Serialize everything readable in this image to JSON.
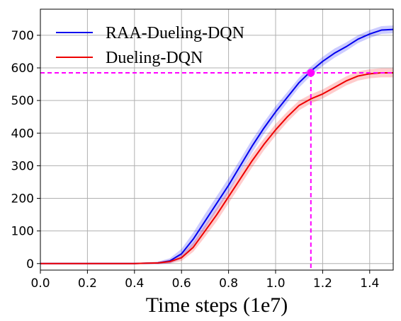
{
  "chart_data": {
    "type": "line",
    "title": "",
    "xlabel": "Time steps (1e7)",
    "ylabel": "",
    "xlim": [
      0.0,
      1.5
    ],
    "ylim": [
      -20,
      780
    ],
    "grid": true,
    "legend_position": "top-left",
    "xticks": [
      0.0,
      0.2,
      0.4,
      0.6,
      0.8,
      1.0,
      1.2,
      1.4
    ],
    "xtick_labels": [
      "0.0",
      "0.2",
      "0.4",
      "0.6",
      "0.8",
      "1.0",
      "1.2",
      "1.4"
    ],
    "yticks": [
      0,
      100,
      200,
      300,
      400,
      500,
      600,
      700
    ],
    "ytick_labels": [
      "0",
      "100",
      "200",
      "300",
      "400",
      "500",
      "600",
      "700"
    ],
    "x": [
      0.0,
      0.1,
      0.2,
      0.3,
      0.4,
      0.45,
      0.5,
      0.55,
      0.6,
      0.65,
      0.7,
      0.75,
      0.8,
      0.85,
      0.9,
      0.95,
      1.0,
      1.05,
      1.1,
      1.15,
      1.2,
      1.25,
      1.3,
      1.35,
      1.4,
      1.45,
      1.5
    ],
    "series": [
      {
        "name": "RAA-Dueling-DQN",
        "color": "#0000ee",
        "band_color": "#0000ff",
        "values": [
          0,
          0,
          0,
          0,
          0,
          1,
          2,
          8,
          30,
          75,
          130,
          185,
          240,
          300,
          360,
          415,
          465,
          510,
          555,
          590,
          620,
          645,
          665,
          688,
          704,
          716,
          718
        ],
        "band": [
          0,
          0,
          0,
          0,
          0,
          2,
          4,
          8,
          15,
          20,
          22,
          22,
          22,
          20,
          20,
          18,
          18,
          16,
          15,
          14,
          14,
          14,
          13,
          12,
          12,
          12,
          12
        ]
      },
      {
        "name": "Dueling-DQN",
        "color": "#ee0000",
        "band_color": "#ff0000",
        "values": [
          0,
          0,
          0,
          0,
          0,
          1,
          2,
          6,
          18,
          50,
          100,
          150,
          205,
          260,
          315,
          365,
          410,
          450,
          485,
          505,
          520,
          540,
          560,
          575,
          582,
          585,
          585
        ],
        "band": [
          0,
          0,
          0,
          0,
          0,
          2,
          3,
          6,
          10,
          14,
          18,
          20,
          20,
          20,
          20,
          18,
          18,
          16,
          15,
          14,
          14,
          14,
          14,
          14,
          14,
          14,
          14
        ]
      }
    ],
    "annotation": {
      "color": "#ff00ff",
      "x": 1.15,
      "y": 585
    }
  }
}
